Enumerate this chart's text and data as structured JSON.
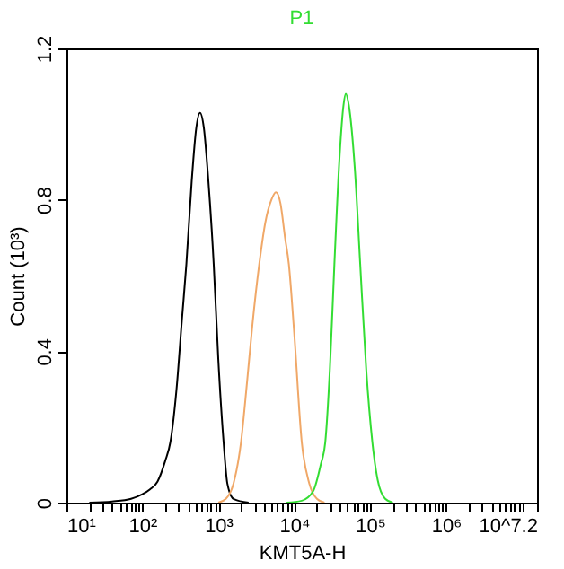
{
  "chart_data": {
    "type": "line",
    "title": "P1",
    "xlabel": "KMT5A-H",
    "ylabel": "Count (10³)",
    "log": "x",
    "grid": false,
    "marker": "none",
    "line_style": "solid",
    "xlim": [
      10,
      15848932
    ],
    "ylim": [
      0,
      1.2
    ],
    "yticks": [
      0,
      0.4,
      0.8,
      1.2
    ],
    "xticks": [
      {
        "value": 10,
        "label": "10¹"
      },
      {
        "value": 100,
        "label": "10²"
      },
      {
        "value": 1000,
        "label": "10³"
      },
      {
        "value": 10000,
        "label": "10⁴"
      },
      {
        "value": 100000,
        "label": "10⁵"
      },
      {
        "value": 1000000,
        "label": "10⁶"
      },
      {
        "value": 15848932,
        "label": "10^7.2"
      },
      {
        "value": 20,
        "label": null
      },
      {
        "value": 30,
        "label": null
      },
      {
        "value": 40,
        "label": null
      },
      {
        "value": 50,
        "label": null
      },
      {
        "value": 60,
        "label": null
      },
      {
        "value": 70,
        "label": null
      },
      {
        "value": 80,
        "label": null
      },
      {
        "value": 90,
        "label": null
      },
      {
        "value": 200,
        "label": null
      },
      {
        "value": 300,
        "label": null
      },
      {
        "value": 400,
        "label": null
      },
      {
        "value": 500,
        "label": null
      },
      {
        "value": 600,
        "label": null
      },
      {
        "value": 700,
        "label": null
      },
      {
        "value": 800,
        "label": null
      },
      {
        "value": 900,
        "label": null
      },
      {
        "value": 2000,
        "label": null
      },
      {
        "value": 3000,
        "label": null
      },
      {
        "value": 4000,
        "label": null
      },
      {
        "value": 5000,
        "label": null
      },
      {
        "value": 6000,
        "label": null
      },
      {
        "value": 7000,
        "label": null
      },
      {
        "value": 8000,
        "label": null
      },
      {
        "value": 9000,
        "label": null
      },
      {
        "value": 20000,
        "label": null
      },
      {
        "value": 30000,
        "label": null
      },
      {
        "value": 40000,
        "label": null
      },
      {
        "value": 50000,
        "label": null
      },
      {
        "value": 60000,
        "label": null
      },
      {
        "value": 70000,
        "label": null
      },
      {
        "value": 80000,
        "label": null
      },
      {
        "value": 90000,
        "label": null
      },
      {
        "value": 200000,
        "label": null
      },
      {
        "value": 300000,
        "label": null
      },
      {
        "value": 400000,
        "label": null
      },
      {
        "value": 500000,
        "label": null
      },
      {
        "value": 600000,
        "label": null
      },
      {
        "value": 700000,
        "label": null
      },
      {
        "value": 800000,
        "label": null
      },
      {
        "value": 900000,
        "label": null
      },
      {
        "value": 2000000,
        "label": null
      },
      {
        "value": 3000000,
        "label": null
      },
      {
        "value": 4000000,
        "label": null
      },
      {
        "value": 5000000,
        "label": null
      },
      {
        "value": 6000000,
        "label": null
      },
      {
        "value": 7000000,
        "label": null
      },
      {
        "value": 8000000,
        "label": null
      },
      {
        "value": 9000000,
        "label": null
      },
      {
        "value": 10000000,
        "label": null
      }
    ],
    "series": [
      {
        "color": "#000000",
        "x": [
          20,
          40,
          71,
          100,
          126,
          158,
          200,
          234,
          282,
          331,
          380,
          447,
          513,
          575,
          646,
          741,
          871,
          1000,
          1175,
          1318,
          1585,
          2512
        ],
        "values": [
          0,
          0.003,
          0.01,
          0.022,
          0.035,
          0.055,
          0.11,
          0.16,
          0.3,
          0.48,
          0.63,
          0.85,
          0.99,
          1.03,
          0.99,
          0.85,
          0.63,
          0.38,
          0.16,
          0.05,
          0.01,
          0
        ]
      },
      {
        "color": "#f0a868",
        "x": [
          1000,
          1259,
          1585,
          1995,
          2399,
          2818,
          3467,
          4169,
          5012,
          5754,
          6607,
          7586,
          8511,
          10000,
          12589,
          15849,
          19953,
          25119
        ],
        "values": [
          0,
          0.01,
          0.05,
          0.16,
          0.32,
          0.47,
          0.63,
          0.74,
          0.8,
          0.82,
          0.79,
          0.7,
          0.63,
          0.45,
          0.16,
          0.05,
          0.01,
          0
        ]
      },
      {
        "color": "#33dd33",
        "x": [
          7943,
          12589,
          17783,
          22387,
          25704,
          29512,
          33884,
          39811,
          44668,
          47863,
          52481,
          63096,
          74131,
          89125,
          107152,
          125893,
          158489,
          199526
        ],
        "values": [
          0,
          0.005,
          0.03,
          0.1,
          0.16,
          0.35,
          0.63,
          0.92,
          1.05,
          1.08,
          1.05,
          0.88,
          0.63,
          0.35,
          0.16,
          0.06,
          0.01,
          0
        ]
      }
    ]
  }
}
